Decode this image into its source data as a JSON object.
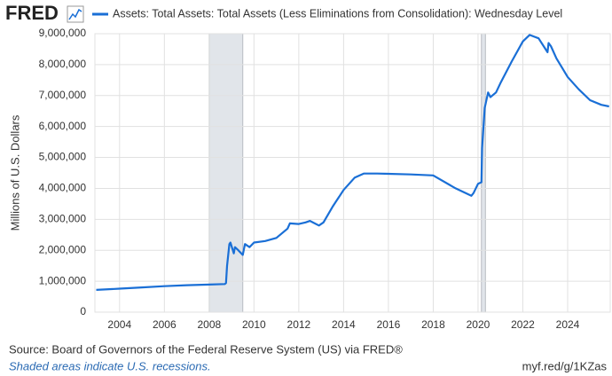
{
  "brand": "FRED",
  "chart_data": {
    "type": "line",
    "y_axis_label": "Millions of U.S. Dollars",
    "source": "Source: Board of Governors of the Federal Reserve System (US) via FRED®",
    "note": "Shaded areas indicate U.S. recessions.",
    "link": "myf.red/g/1KZas",
    "xlim": [
      2002.9,
      2025.9
    ],
    "xticks": [
      2004,
      2006,
      2008,
      2010,
      2012,
      2014,
      2016,
      2018,
      2020,
      2022,
      2024
    ],
    "ylim": [
      0,
      9000000
    ],
    "yticks": [
      0,
      {
        "value": 1000000,
        "label": "1,000,000"
      },
      {
        "value": 2000000,
        "label": "2,000,000"
      },
      {
        "value": 3000000,
        "label": "3,000,000"
      },
      {
        "value": 4000000,
        "label": "4,000,000"
      },
      {
        "value": 5000000,
        "label": "5,000,000"
      },
      {
        "value": 6000000,
        "label": "6,000,000"
      },
      {
        "value": 7000000,
        "label": "7,000,000"
      },
      {
        "value": 8000000,
        "label": "8,000,000"
      },
      {
        "value": 9000000,
        "label": "9,000,000"
      }
    ],
    "grid": true,
    "recessions": [
      [
        2008.0,
        2009.5
      ],
      [
        2020.15,
        2020.33
      ]
    ],
    "series": [
      {
        "name": "Assets: Total Assets: Total Assets (Less Eliminations from Consolidation): Wednesday Level",
        "color": "#1a6fd6",
        "x": [
          2002.96,
          2004,
          2005,
          2006,
          2007,
          2008,
          2008.7,
          2008.75,
          2008.8,
          2008.9,
          2008.95,
          2009.1,
          2009.15,
          2009.3,
          2009.5,
          2009.6,
          2009.8,
          2010,
          2010.5,
          2011,
          2011.5,
          2011.6,
          2012,
          2012.3,
          2012.5,
          2012.9,
          2013.1,
          2013.5,
          2014,
          2014.5,
          2014.9,
          2015.5,
          2016,
          2017,
          2018,
          2019,
          2019.7,
          2019.8,
          2020,
          2020.15,
          2020.18,
          2020.3,
          2020.45,
          2020.55,
          2020.8,
          2021,
          2021.5,
          2022,
          2022.3,
          2022.7,
          2023.1,
          2023.15,
          2023.25,
          2023.5,
          2024,
          2024.5,
          2025,
          2025.5,
          2025.85
        ],
        "values": [
          720000,
          760000,
          800000,
          840000,
          870000,
          890000,
          910000,
          940000,
          1500000,
          2200000,
          2250000,
          1900000,
          2100000,
          2000000,
          1850000,
          2200000,
          2100000,
          2250000,
          2300000,
          2400000,
          2700000,
          2870000,
          2850000,
          2900000,
          2950000,
          2800000,
          2900000,
          3400000,
          3950000,
          4350000,
          4480000,
          4480000,
          4470000,
          4450000,
          4420000,
          4000000,
          3760000,
          3850000,
          4150000,
          4200000,
          5300000,
          6600000,
          7100000,
          6950000,
          7100000,
          7400000,
          8100000,
          8750000,
          8960000,
          8850000,
          8400000,
          8700000,
          8600000,
          8200000,
          7600000,
          7200000,
          6850000,
          6700000,
          6650000
        ]
      }
    ]
  }
}
